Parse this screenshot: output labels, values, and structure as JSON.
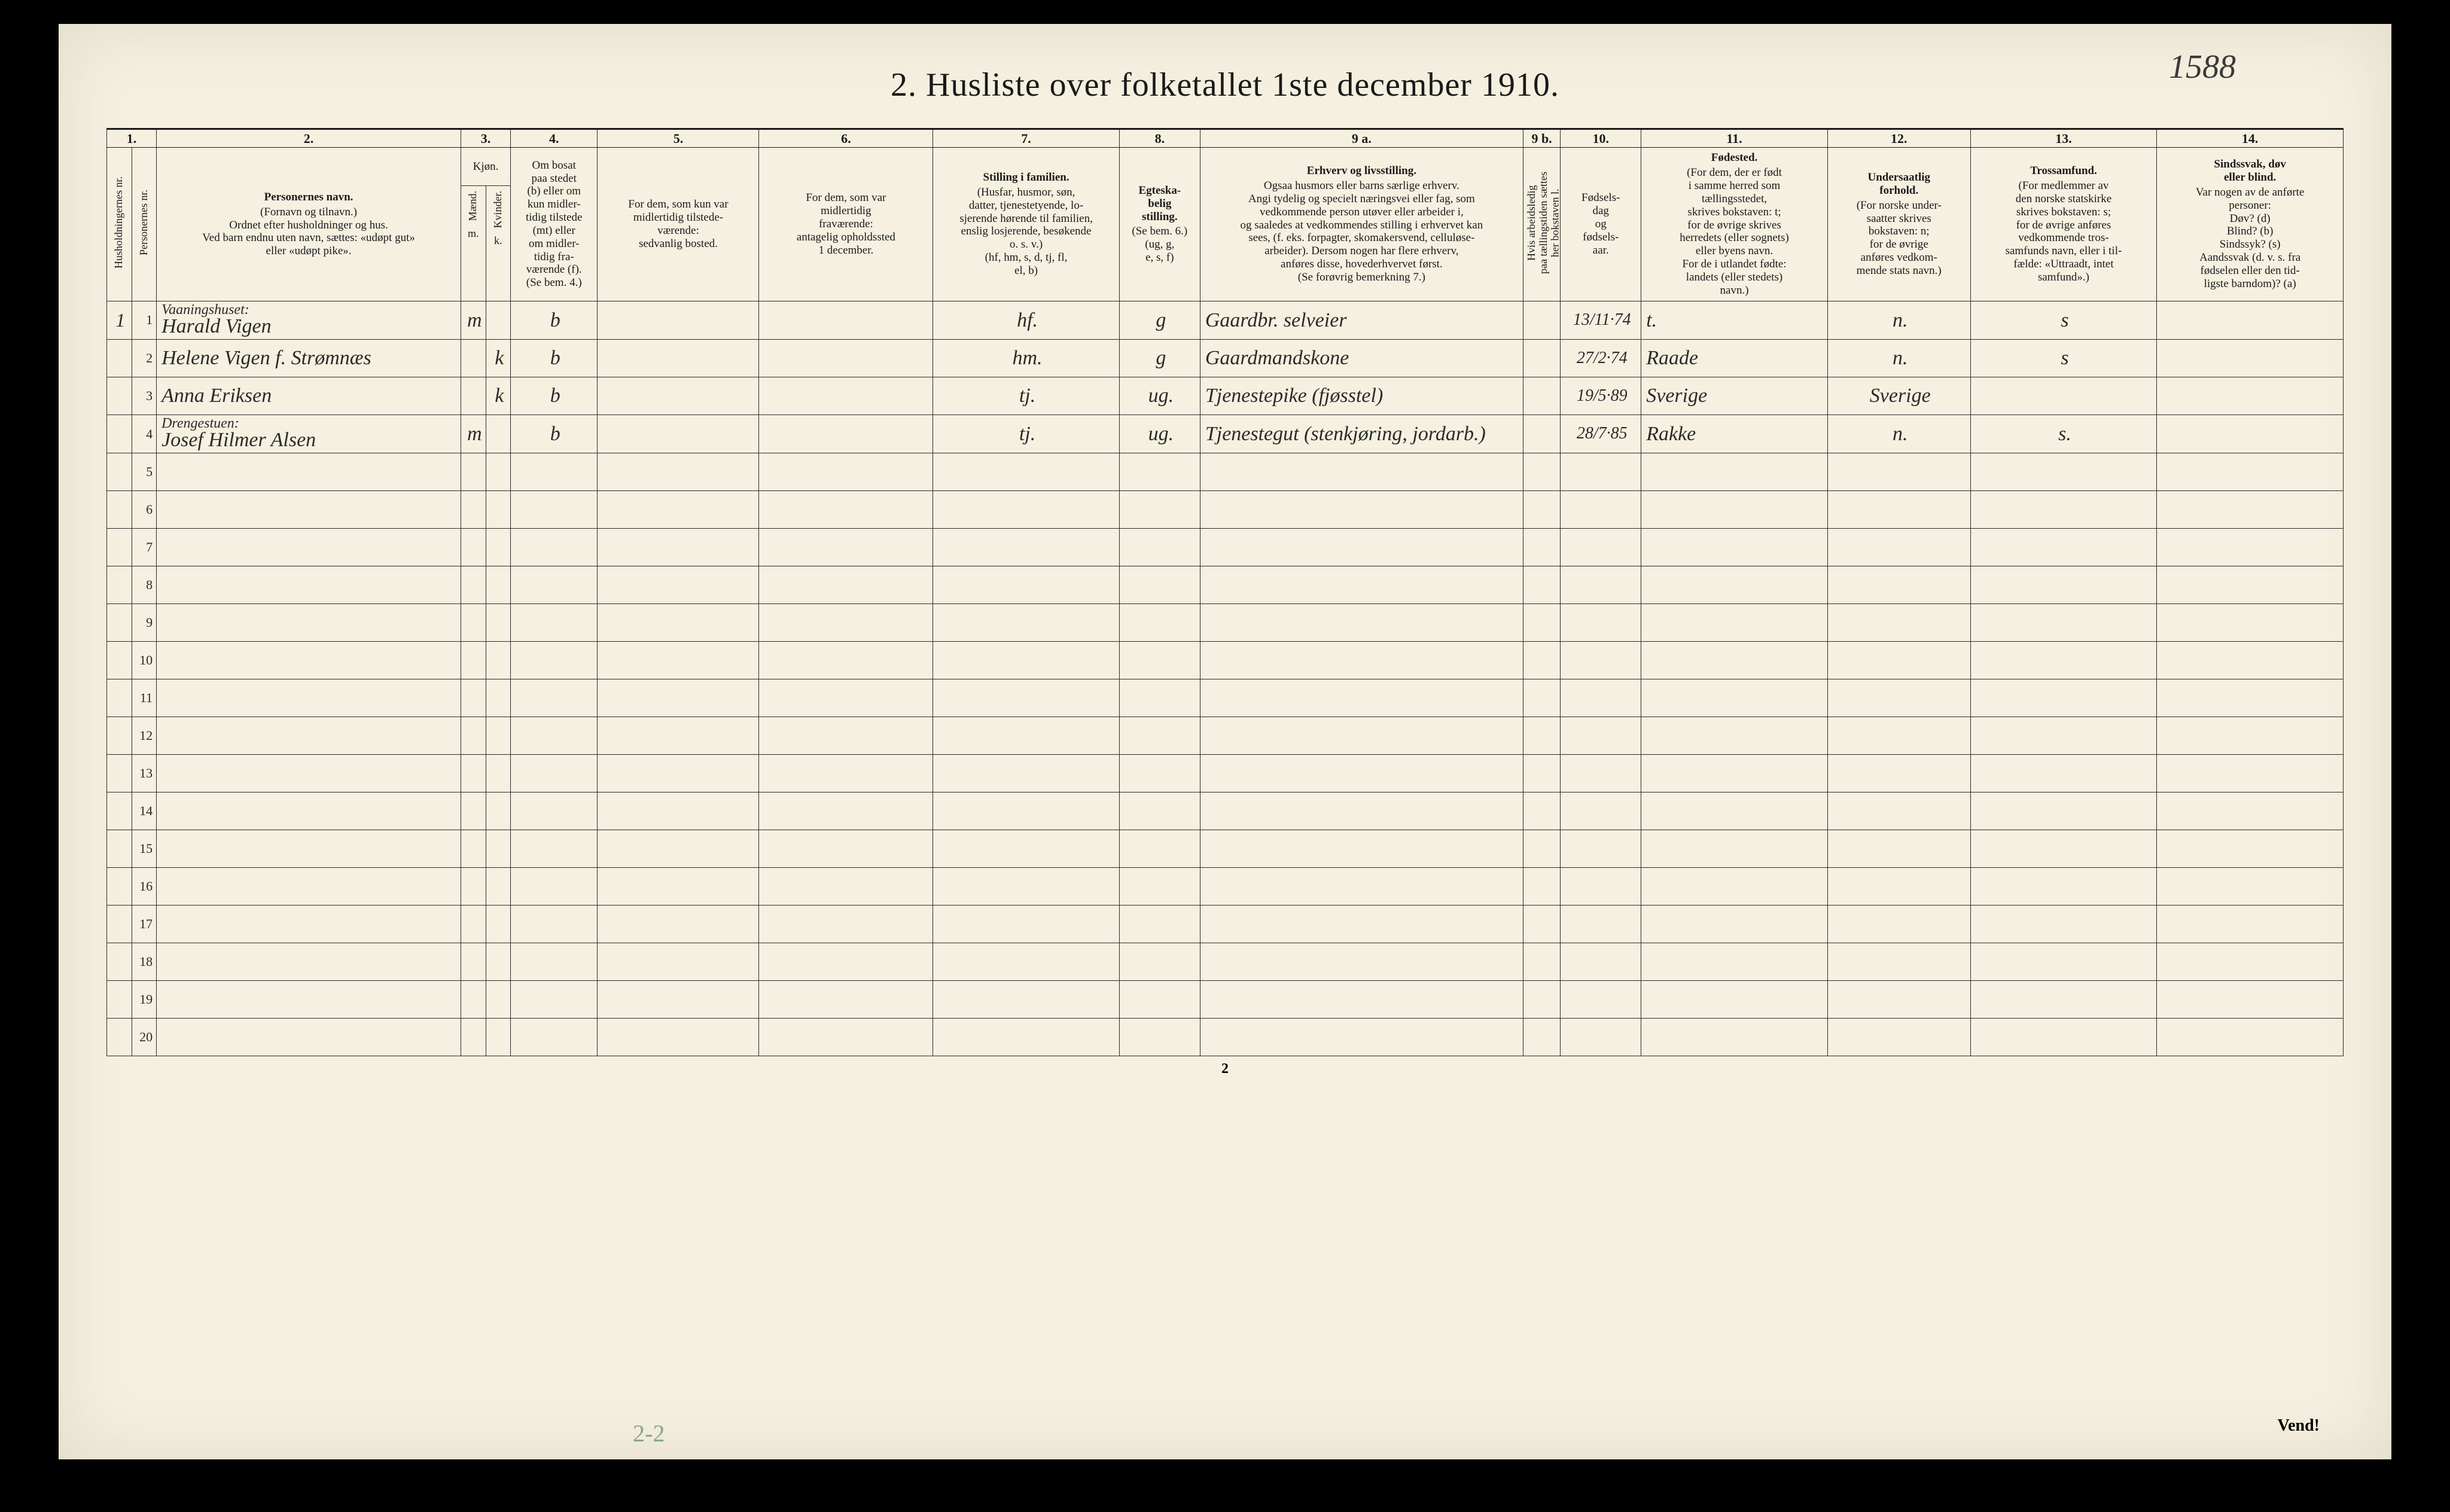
{
  "page": {
    "title": "2.  Husliste over folketallet 1ste december 1910.",
    "topright_hand": "1588",
    "footer_pagenum": "2",
    "vend": "Vend!",
    "bottom_annot": "2-2"
  },
  "colnums": [
    "1.",
    "2.",
    "3.",
    "4.",
    "5.",
    "6.",
    "7.",
    "8.",
    "9 a.",
    "9 b.",
    "10.",
    "11.",
    "12.",
    "13.",
    "14."
  ],
  "headers": {
    "c1": "Husholdningernes nr.",
    "c1b": "Personernes nr.",
    "c2_main": "Personernes navn.",
    "c2_sub": "(Fornavn og tilnavn.)\nOrdnet efter husholdninger og hus.\nVed barn endnu uten navn, sættes: «udøpt gut»\neller «udøpt pike».",
    "c3_main": "Kjøn.",
    "c3_m": "Mænd.",
    "c3_k": "Kvinder.",
    "c3_mk_m": "m.",
    "c3_mk_k": "k.",
    "c4": "Om bosat\npaa stedet\n(b) eller om\nkun midler-\ntidig tilstede\n(mt) eller\nom midler-\ntidig fra-\nværende (f).\n(Se bem. 4.)",
    "c5": "For dem, som kun var\nmidlertidig tilstede-\nværende:\nsedvanlig bosted.",
    "c6": "For dem, som var\nmidlertidig\nfraværende:\nantagelig opholdssted\n1 december.",
    "c7_main": "Stilling i familien.",
    "c7_sub": "(Husfar, husmor, søn,\ndatter, tjenestetyende, lo-\nsjerende hørende til familien,\nenslig losjerende, besøkende\no. s. v.)\n(hf, hm, s, d, tj, fl,\nel, b)",
    "c8_main": "Egteska-\nbelig\nstilling.",
    "c8_sub": "(Se bem. 6.)\n(ug, g,\ne, s, f)",
    "c9a_main": "Erhverv og livsstilling.",
    "c9a_sub": "Ogsaa husmors eller barns særlige erhverv.\nAngi tydelig og specielt næringsvei eller fag, som\nvedkommende person utøver eller arbeider i,\nog saaledes at vedkommendes stilling i erhvervet kan\nsees, (f. eks. forpagter, skomakersvend, celluløse-\narbeider). Dersom nogen har flere erhverv,\nanføres disse, hovederhvervet først.\n(Se forøvrig bemerkning 7.)",
    "c9b": "Hvis arbeidsledig\npaa tællingstiden sættes\nher bokstaven l.",
    "c10": "Fødsels-\ndag\nog\nfødsels-\naar.",
    "c11_main": "Fødested.",
    "c11_sub": "(For dem, der er født\ni samme herred som\ntællingsstedet,\nskrives bokstaven: t;\nfor de øvrige skrives\nherredets (eller sognets)\neller byens navn.\nFor de i utlandet fødte:\nlandets (eller stedets)\nnavn.)",
    "c12_main": "Undersaatlig\nforhold.",
    "c12_sub": "(For norske under-\nsaatter skrives\nbokstaven: n;\nfor de øvrige\nanføres vedkom-\nmende stats navn.)",
    "c13_main": "Trossamfund.",
    "c13_sub": "(For medlemmer av\nden norske statskirke\nskrives bokstaven: s;\nfor de øvrige anføres\nvedkommende tros-\nsamfunds navn, eller i til-\nfælde: «Uttraadt, intet\nsamfund».)",
    "c14_main": "Sindssvak, døv\neller blind.",
    "c14_sub": "Var nogen av de anførte\npersoner:\nDøv?       (d)\nBlind?     (b)\nSindssyk? (s)\nAandssvak (d. v. s. fra\nfødselen eller den tid-\nligste barndom)? (a)"
  },
  "rows": [
    {
      "hh": "1",
      "pn": "1",
      "building": "Vaaningshuset:",
      "name": "Harald Vigen",
      "sex_m": "m",
      "sex_k": "",
      "bosat": "b",
      "c5": "",
      "c6": "",
      "stilling": "hf.",
      "egte": "g",
      "erhverv": "Gaardbr. selveier",
      "c9b": "",
      "dob": "13/11·74",
      "fodested": "t.",
      "under": "n.",
      "tros": "s",
      "c14": ""
    },
    {
      "hh": "",
      "pn": "2",
      "building": "",
      "name": "Helene Vigen f. Strømnæs",
      "sex_m": "",
      "sex_k": "k",
      "bosat": "b",
      "c5": "",
      "c6": "",
      "stilling": "hm.",
      "egte": "g",
      "erhverv": "Gaardmandskone",
      "c9b": "",
      "dob": "27/2·74",
      "fodested": "Raade",
      "under": "n.",
      "tros": "s",
      "c14": ""
    },
    {
      "hh": "",
      "pn": "3",
      "building": "",
      "name": "Anna Eriksen",
      "sex_m": "",
      "sex_k": "k",
      "bosat": "b",
      "c5": "",
      "c6": "",
      "stilling": "tj.",
      "egte": "ug.",
      "erhverv": "Tjenestepike (fjøsstel)",
      "c9b": "",
      "dob": "19/5·89",
      "fodested": "Sverige",
      "under": "Sverige",
      "tros": "",
      "c14": ""
    },
    {
      "hh": "",
      "pn": "4",
      "building": "Drengestuen:",
      "name": "Josef Hilmer Alsen",
      "sex_m": "m",
      "sex_k": "",
      "bosat": "b",
      "c5": "",
      "c6": "",
      "stilling": "tj.",
      "egte": "ug.",
      "erhverv": "Tjenestegut (stenkjøring, jordarb.)",
      "c9b": "",
      "dob": "28/7·85",
      "fodested": "Rakke",
      "under": "n.",
      "tros": "s.",
      "c14": ""
    }
  ],
  "empty_rows": [
    "5",
    "6",
    "7",
    "8",
    "9",
    "10",
    "11",
    "12",
    "13",
    "14",
    "15",
    "16",
    "17",
    "18",
    "19",
    "20"
  ],
  "colwidths": {
    "c1a": 40,
    "c1b": 40,
    "c2": 490,
    "c3m": 40,
    "c3k": 40,
    "c4": 140,
    "c5": 260,
    "c6": 280,
    "c7": 300,
    "c8": 130,
    "c9a": 520,
    "c9b": 60,
    "c10": 130,
    "c11": 300,
    "c12": 230,
    "c13": 300,
    "c14": 300
  }
}
